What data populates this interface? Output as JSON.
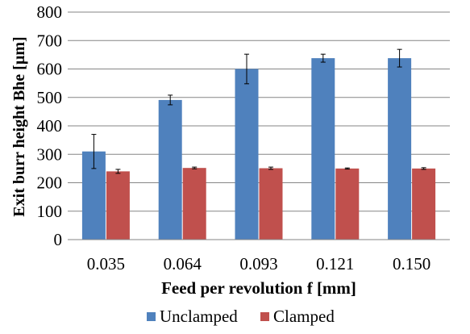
{
  "chart_data": {
    "type": "bar",
    "title": "",
    "xlabel": "Feed per revolution f [mm]",
    "ylabel": "Exit burr height Bhe [µm]",
    "categories": [
      "0.035",
      "0.064",
      "0.093",
      "0.121",
      "0.150"
    ],
    "ylim": [
      0,
      800
    ],
    "yticks": [
      "0",
      "100",
      "200",
      "300",
      "400",
      "500",
      "600",
      "700",
      "800"
    ],
    "grid": true,
    "legend_position": "bottom",
    "series": [
      {
        "name": "Unclamped",
        "color": "#4F81BD",
        "values": [
          310,
          491,
          600,
          638,
          638
        ],
        "error": [
          60,
          17,
          52,
          14,
          31
        ]
      },
      {
        "name": "Clamped",
        "color": "#C0504D",
        "values": [
          240,
          252,
          251,
          250,
          250
        ],
        "error": [
          7,
          3,
          4,
          2,
          3
        ]
      }
    ]
  }
}
